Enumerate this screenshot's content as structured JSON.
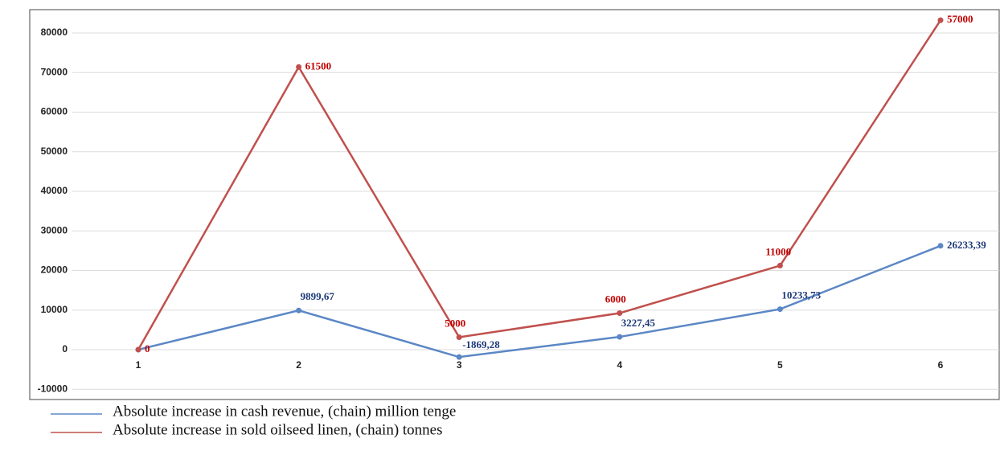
{
  "chart_data": {
    "type": "line",
    "stacked": true,
    "categories": [
      "1",
      "2",
      "3",
      "4",
      "5",
      "6"
    ],
    "series": [
      {
        "name": "Absolute increase in cash revenue, (chain) million tenge",
        "color": "#5b87c5",
        "label_color": "#1f3a7a",
        "values": [
          0,
          9899.67,
          -1869.28,
          3227.45,
          10233.73,
          26233.39
        ],
        "value_labels": [
          null,
          "9899,67",
          "-1869,28",
          "3227,45",
          "10233,73",
          "26233,39"
        ]
      },
      {
        "name": "Absolute increase in sold oilseed linen, (chain) tonnes",
        "color": "#c0504d",
        "label_color": "#c00000",
        "values": [
          0,
          61500,
          5000,
          6000,
          11000,
          57000
        ]
      }
    ],
    "ylim": [
      -12600,
      85900
    ],
    "yticks": [
      -10000,
      0,
      10000,
      20000,
      30000,
      40000,
      50000,
      60000,
      70000,
      80000
    ],
    "grid": true
  }
}
